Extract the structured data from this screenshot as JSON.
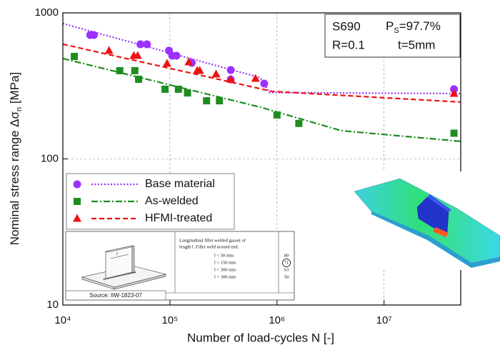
{
  "chart_data": {
    "type": "scatter",
    "log_x": true,
    "log_y": true,
    "grid": true,
    "legend": "lower left",
    "xlim": [
      10000,
      52000000
    ],
    "ylim": [
      10,
      1000
    ],
    "xticks": [
      {
        "value": 10000,
        "label": "10⁴"
      },
      {
        "value": 100000,
        "label": "10⁵"
      },
      {
        "value": 1000000,
        "label": "10⁶"
      },
      {
        "value": 10000000,
        "label": "10⁷"
      }
    ],
    "yticks": [
      10,
      100,
      1000
    ],
    "x_label": "Number of load-cycles N [-]",
    "y_label": {
      "main": "Nominal stress range Δσ",
      "sub": "n",
      "unit": " [MPa]"
    },
    "annotation": {
      "steel": "S690",
      "ps_symbol": "P",
      "ps_sub": "S",
      "ps_value": "=97.7%",
      "ratio": "R=0.1",
      "thickness": "t=5mm"
    },
    "series": [
      {
        "name": "Base material",
        "color": "#9b30ff",
        "marker": "circle",
        "x": [
          18000,
          19500,
          53000,
          61000,
          98000,
          105000,
          115000,
          160000,
          370000,
          370000,
          760000,
          45000000
        ],
        "values": [
          705,
          705,
          609,
          609,
          551,
          509,
          509,
          455,
          406,
          350,
          328,
          300
        ],
        "fit": {
          "dash": "dotted",
          "x": [
            10000,
            700000,
            850000,
            52000000
          ],
          "values": [
            845,
            360,
            285,
            280
          ]
        }
      },
      {
        "name": "As-welded",
        "color": "#1f8c1f",
        "marker": "square",
        "x": [
          12800,
          34000,
          47000,
          51000,
          90000,
          120000,
          146000,
          220000,
          290000,
          1000000,
          1600000,
          45000000
        ],
        "values": [
          503,
          402,
          402,
          351,
          300,
          300,
          283,
          250,
          250,
          200,
          175,
          150
        ],
        "fit": {
          "dash": "dashdot",
          "x": [
            10000,
            700000,
            4000000,
            52000000
          ],
          "values": [
            487,
            226,
            156,
            132
          ]
        }
      },
      {
        "name": "HFMI-treated",
        "color": "#ee1111",
        "marker": "triangle",
        "x": [
          27000,
          46000,
          50000,
          94000,
          150000,
          180000,
          190000,
          270000,
          370000,
          630000,
          45000000
        ],
        "values": [
          551,
          509,
          509,
          450,
          460,
          402,
          402,
          380,
          350,
          355,
          280
        ],
        "fit": {
          "dash": "dashed",
          "x": [
            10000,
            900000,
            52000000
          ],
          "values": [
            610,
            290,
            245
          ]
        }
      }
    ],
    "inset": {
      "description": [
        "Longitudinal fillet welded gusset of",
        "length l. Fillet weld around end."
      ],
      "conditions": [
        "l < 50 mm",
        "l < 150 mm",
        "l < 300 mm",
        "l > 300 mm"
      ],
      "fat_classes": [
        "80",
        "71",
        "63",
        "50"
      ],
      "length_symbol": "l",
      "source": "Source: IIW-1823-07"
    }
  }
}
